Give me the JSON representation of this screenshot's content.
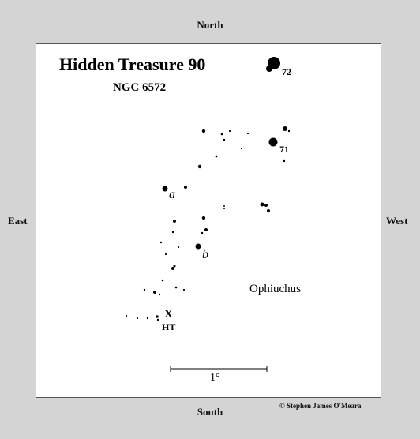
{
  "directions": {
    "north": "North",
    "south": "South",
    "east": "East",
    "west": "West"
  },
  "credit": "© Stephen James O'Meara",
  "chart": {
    "title": "Hidden Treasure 90",
    "subtitle": "NGC 6572",
    "constellation": "Ophiuchus",
    "scale_label": "1°",
    "target": {
      "marker": "X",
      "label": "HT"
    },
    "star_labels": {
      "s72": "72",
      "s71": "71",
      "a": "a",
      "b": "b"
    }
  }
}
